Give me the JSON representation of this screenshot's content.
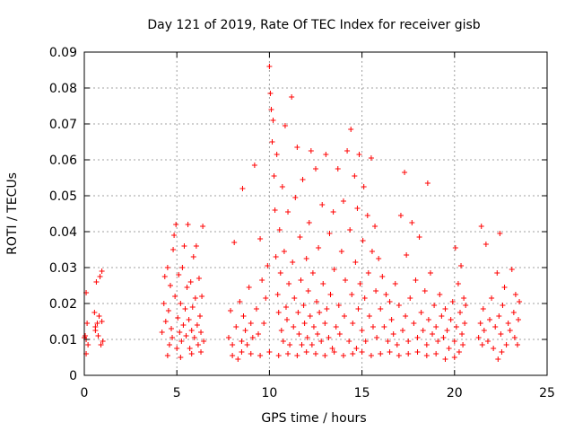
{
  "chart_data": {
    "type": "scatter",
    "title": "Day 121 of 2019, Rate Of TEC Index for receiver gisb",
    "xlabel": "GPS time / hours",
    "ylabel": "ROTI / TECUs",
    "xlim": [
      0,
      25
    ],
    "ylim": [
      0,
      0.09
    ],
    "x_ticks": [
      0,
      5,
      10,
      15,
      20,
      25
    ],
    "x_tick_labels": [
      "0",
      "5",
      "10",
      "15",
      "20",
      "25"
    ],
    "y_ticks": [
      0,
      0.01,
      0.02,
      0.03,
      0.04,
      0.05,
      0.06,
      0.07,
      0.08,
      0.09
    ],
    "y_tick_labels": [
      "0",
      "0.01",
      "0.02",
      "0.03",
      "0.04",
      "0.05",
      "0.06",
      "0.07",
      "0.08",
      "0.09"
    ],
    "grid": true,
    "marker": "plus",
    "color": "#ff0000",
    "series": [
      {
        "name": "ROTI",
        "points": [
          [
            0.0,
            0.0105
          ],
          [
            0.05,
            0.011
          ],
          [
            0.1,
            0.01
          ],
          [
            0.1,
            0.023
          ],
          [
            0.15,
            0.0145
          ],
          [
            0.2,
            0.0085
          ],
          [
            0.1,
            0.006
          ],
          [
            0.55,
            0.0175
          ],
          [
            0.6,
            0.0125
          ],
          [
            0.65,
            0.026
          ],
          [
            0.7,
            0.0145
          ],
          [
            0.75,
            0.011
          ],
          [
            0.8,
            0.0165
          ],
          [
            0.85,
            0.0275
          ],
          [
            0.9,
            0.0085
          ],
          [
            0.95,
            0.029
          ],
          [
            1.0,
            0.0095
          ],
          [
            0.95,
            0.015
          ],
          [
            0.6,
            0.0135
          ],
          [
            4.2,
            0.012
          ],
          [
            4.3,
            0.02
          ],
          [
            4.35,
            0.0275
          ],
          [
            4.4,
            0.015
          ],
          [
            4.5,
            0.03
          ],
          [
            4.55,
            0.018
          ],
          [
            4.6,
            0.0085
          ],
          [
            4.65,
            0.025
          ],
          [
            4.7,
            0.013
          ],
          [
            4.75,
            0.0105
          ],
          [
            4.8,
            0.035
          ],
          [
            4.85,
            0.039
          ],
          [
            4.9,
            0.022
          ],
          [
            4.95,
            0.042
          ],
          [
            5.0,
            0.0075
          ],
          [
            5.05,
            0.016
          ],
          [
            5.1,
            0.028
          ],
          [
            5.15,
            0.012
          ],
          [
            5.2,
            0.02
          ],
          [
            5.25,
            0.0095
          ],
          [
            5.3,
            0.03
          ],
          [
            5.35,
            0.014
          ],
          [
            5.4,
            0.036
          ],
          [
            5.45,
            0.0185
          ],
          [
            5.5,
            0.011
          ],
          [
            5.55,
            0.0245
          ],
          [
            5.6,
            0.042
          ],
          [
            5.65,
            0.0155
          ],
          [
            5.7,
            0.0075
          ],
          [
            5.75,
            0.026
          ],
          [
            5.8,
            0.0125
          ],
          [
            5.85,
            0.019
          ],
          [
            5.9,
            0.033
          ],
          [
            5.95,
            0.0105
          ],
          [
            6.0,
            0.0215
          ],
          [
            6.05,
            0.036
          ],
          [
            6.1,
            0.014
          ],
          [
            6.15,
            0.0085
          ],
          [
            6.2,
            0.027
          ],
          [
            6.25,
            0.0165
          ],
          [
            6.3,
            0.012
          ],
          [
            6.35,
            0.022
          ],
          [
            6.4,
            0.0415
          ],
          [
            6.45,
            0.0095
          ],
          [
            4.5,
            0.0055
          ],
          [
            5.2,
            0.005
          ],
          [
            5.8,
            0.006
          ],
          [
            6.3,
            0.0065
          ],
          [
            7.8,
            0.0105
          ],
          [
            7.9,
            0.018
          ],
          [
            8.0,
            0.0085
          ],
          [
            8.1,
            0.037
          ],
          [
            8.2,
            0.0135
          ],
          [
            8.3,
            0.0045
          ],
          [
            8.4,
            0.0205
          ],
          [
            8.5,
            0.0095
          ],
          [
            8.55,
            0.052
          ],
          [
            8.6,
            0.0165
          ],
          [
            8.7,
            0.0125
          ],
          [
            8.8,
            0.0085
          ],
          [
            8.9,
            0.0245
          ],
          [
            9.0,
            0.0145
          ],
          [
            9.1,
            0.0105
          ],
          [
            9.2,
            0.0585
          ],
          [
            9.3,
            0.0185
          ],
          [
            9.4,
            0.0115
          ],
          [
            9.5,
            0.038
          ],
          [
            9.6,
            0.0265
          ],
          [
            9.7,
            0.0145
          ],
          [
            9.8,
            0.0215
          ],
          [
            9.9,
            0.0305
          ],
          [
            10.0,
            0.086
          ],
          [
            10.05,
            0.0785
          ],
          [
            10.1,
            0.074
          ],
          [
            10.15,
            0.065
          ],
          [
            10.2,
            0.071
          ],
          [
            10.25,
            0.0555
          ],
          [
            10.3,
            0.046
          ],
          [
            10.35,
            0.033
          ],
          [
            10.4,
            0.0615
          ],
          [
            10.45,
            0.0225
          ],
          [
            10.5,
            0.0175
          ],
          [
            10.55,
            0.0405
          ],
          [
            10.6,
            0.0285
          ],
          [
            10.65,
            0.0125
          ],
          [
            10.7,
            0.0525
          ],
          [
            10.75,
            0.0095
          ],
          [
            10.8,
            0.0345
          ],
          [
            10.85,
            0.0695
          ],
          [
            10.9,
            0.019
          ],
          [
            10.95,
            0.0155
          ],
          [
            11.0,
            0.0455
          ],
          [
            11.05,
            0.0255
          ],
          [
            11.1,
            0.0085
          ],
          [
            11.2,
            0.0775
          ],
          [
            11.25,
            0.0315
          ],
          [
            11.3,
            0.0135
          ],
          [
            11.35,
            0.0215
          ],
          [
            11.4,
            0.0495
          ],
          [
            11.5,
            0.0635
          ],
          [
            11.55,
            0.0175
          ],
          [
            11.6,
            0.0115
          ],
          [
            11.65,
            0.0385
          ],
          [
            11.7,
            0.0265
          ],
          [
            11.75,
            0.0085
          ],
          [
            11.8,
            0.0545
          ],
          [
            11.85,
            0.0195
          ],
          [
            11.9,
            0.0145
          ],
          [
            12.0,
            0.0325
          ],
          [
            12.05,
            0.0105
          ],
          [
            12.1,
            0.0235
          ],
          [
            12.15,
            0.0425
          ],
          [
            12.2,
            0.0165
          ],
          [
            12.25,
            0.0625
          ],
          [
            12.3,
            0.0085
          ],
          [
            12.35,
            0.0285
          ],
          [
            12.4,
            0.0135
          ],
          [
            12.5,
            0.0575
          ],
          [
            12.55,
            0.0205
          ],
          [
            12.6,
            0.0115
          ],
          [
            12.65,
            0.0355
          ],
          [
            12.7,
            0.0175
          ],
          [
            12.8,
            0.0095
          ],
          [
            12.85,
            0.0475
          ],
          [
            12.9,
            0.0255
          ],
          [
            13.0,
            0.0145
          ],
          [
            13.05,
            0.0615
          ],
          [
            13.1,
            0.0185
          ],
          [
            13.2,
            0.0105
          ],
          [
            13.25,
            0.0395
          ],
          [
            13.3,
            0.0225
          ],
          [
            13.4,
            0.0075
          ],
          [
            13.45,
            0.0455
          ],
          [
            13.5,
            0.0295
          ],
          [
            13.6,
            0.0135
          ],
          [
            13.7,
            0.0575
          ],
          [
            13.75,
            0.0195
          ],
          [
            13.8,
            0.0115
          ],
          [
            13.9,
            0.0345
          ],
          [
            14.0,
            0.0485
          ],
          [
            14.05,
            0.0165
          ],
          [
            14.1,
            0.0265
          ],
          [
            14.2,
            0.0625
          ],
          [
            14.3,
            0.0095
          ],
          [
            14.35,
            0.0405
          ],
          [
            14.4,
            0.0685
          ],
          [
            14.45,
            0.0225
          ],
          [
            14.5,
            0.0145
          ],
          [
            14.6,
            0.0555
          ],
          [
            14.65,
            0.0315
          ],
          [
            14.7,
            0.0075
          ],
          [
            14.75,
            0.0465
          ],
          [
            14.8,
            0.0185
          ],
          [
            14.85,
            0.0615
          ],
          [
            14.9,
            0.0255
          ],
          [
            15.0,
            0.0125
          ],
          [
            15.05,
            0.0375
          ],
          [
            15.1,
            0.0525
          ],
          [
            15.15,
            0.0215
          ],
          [
            15.2,
            0.0095
          ],
          [
            15.3,
            0.0445
          ],
          [
            15.35,
            0.0285
          ],
          [
            15.4,
            0.0165
          ],
          [
            15.5,
            0.0605
          ],
          [
            15.55,
            0.0345
          ],
          [
            15.6,
            0.0135
          ],
          [
            15.7,
            0.0415
          ],
          [
            15.75,
            0.0235
          ],
          [
            15.8,
            0.0105
          ],
          [
            15.9,
            0.0325
          ],
          [
            16.0,
            0.0185
          ],
          [
            16.1,
            0.0275
          ],
          [
            16.2,
            0.0135
          ],
          [
            16.3,
            0.0225
          ],
          [
            16.4,
            0.0095
          ],
          [
            16.5,
            0.0205
          ],
          [
            16.6,
            0.0155
          ],
          [
            16.7,
            0.0115
          ],
          [
            16.8,
            0.0255
          ],
          [
            16.9,
            0.0085
          ],
          [
            17.0,
            0.0195
          ],
          [
            17.1,
            0.0445
          ],
          [
            17.2,
            0.0125
          ],
          [
            17.3,
            0.0565
          ],
          [
            17.35,
            0.0165
          ],
          [
            17.4,
            0.0335
          ],
          [
            17.5,
            0.0095
          ],
          [
            17.6,
            0.0215
          ],
          [
            17.7,
            0.0425
          ],
          [
            17.8,
            0.0145
          ],
          [
            17.9,
            0.0265
          ],
          [
            18.0,
            0.0105
          ],
          [
            18.1,
            0.0385
          ],
          [
            18.2,
            0.0175
          ],
          [
            18.3,
            0.0125
          ],
          [
            18.4,
            0.0235
          ],
          [
            18.5,
            0.0085
          ],
          [
            18.55,
            0.0535
          ],
          [
            18.6,
            0.0155
          ],
          [
            18.7,
            0.0285
          ],
          [
            18.8,
            0.0115
          ],
          [
            18.9,
            0.0195
          ],
          [
            19.0,
            0.0135
          ],
          [
            19.1,
            0.0095
          ],
          [
            19.2,
            0.0225
          ],
          [
            19.3,
            0.0165
          ],
          [
            19.4,
            0.0105
          ],
          [
            19.5,
            0.0185
          ],
          [
            19.6,
            0.0125
          ],
          [
            19.7,
            0.0075
          ],
          [
            19.8,
            0.0155
          ],
          [
            19.9,
            0.0205
          ],
          [
            20.0,
            0.0095
          ],
          [
            20.05,
            0.0355
          ],
          [
            20.1,
            0.0135
          ],
          [
            20.2,
            0.0255
          ],
          [
            20.25,
            0.0065
          ],
          [
            20.3,
            0.0175
          ],
          [
            20.35,
            0.0305
          ],
          [
            20.4,
            0.0115
          ],
          [
            20.45,
            0.0085
          ],
          [
            20.5,
            0.0215
          ],
          [
            20.55,
            0.0145
          ],
          [
            20.6,
            0.0195
          ],
          [
            21.3,
            0.0105
          ],
          [
            21.4,
            0.0145
          ],
          [
            21.45,
            0.0415
          ],
          [
            21.5,
            0.0085
          ],
          [
            21.55,
            0.0185
          ],
          [
            21.6,
            0.0125
          ],
          [
            21.7,
            0.0365
          ],
          [
            21.8,
            0.0095
          ],
          [
            21.9,
            0.0155
          ],
          [
            22.0,
            0.0215
          ],
          [
            22.1,
            0.0075
          ],
          [
            22.2,
            0.0135
          ],
          [
            22.3,
            0.0285
          ],
          [
            22.35,
            0.0045
          ],
          [
            22.4,
            0.0165
          ],
          [
            22.45,
            0.0395
          ],
          [
            22.5,
            0.0115
          ],
          [
            22.55,
            0.0065
          ],
          [
            22.6,
            0.0195
          ],
          [
            22.7,
            0.0245
          ],
          [
            22.8,
            0.0085
          ],
          [
            22.9,
            0.0145
          ],
          [
            23.0,
            0.0125
          ],
          [
            23.1,
            0.0295
          ],
          [
            23.2,
            0.0175
          ],
          [
            23.25,
            0.0105
          ],
          [
            23.3,
            0.0225
          ],
          [
            23.4,
            0.0085
          ],
          [
            23.45,
            0.0155
          ],
          [
            23.5,
            0.0205
          ],
          [
            8.0,
            0.0055
          ],
          [
            8.5,
            0.0065
          ],
          [
            9.0,
            0.006
          ],
          [
            9.5,
            0.0055
          ],
          [
            10.0,
            0.0065
          ],
          [
            10.5,
            0.0055
          ],
          [
            11.0,
            0.006
          ],
          [
            11.5,
            0.0055
          ],
          [
            12.0,
            0.0065
          ],
          [
            12.5,
            0.006
          ],
          [
            13.0,
            0.0055
          ],
          [
            13.5,
            0.0065
          ],
          [
            14.0,
            0.0055
          ],
          [
            14.5,
            0.006
          ],
          [
            15.0,
            0.0065
          ],
          [
            15.5,
            0.0055
          ],
          [
            16.0,
            0.006
          ],
          [
            16.5,
            0.0065
          ],
          [
            17.0,
            0.0055
          ],
          [
            17.5,
            0.006
          ],
          [
            18.0,
            0.0065
          ],
          [
            18.5,
            0.0055
          ],
          [
            19.0,
            0.006
          ],
          [
            19.5,
            0.0045
          ],
          [
            20.0,
            0.005
          ]
        ]
      }
    ]
  }
}
